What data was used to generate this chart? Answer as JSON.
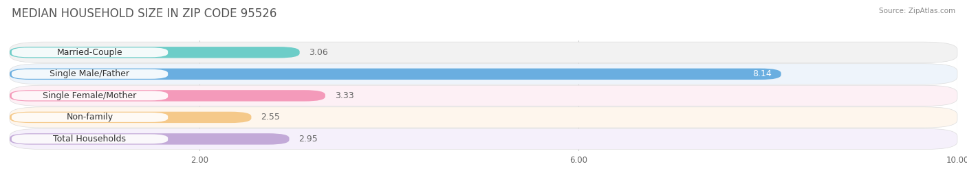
{
  "title": "MEDIAN HOUSEHOLD SIZE IN ZIP CODE 95526",
  "source": "Source: ZipAtlas.com",
  "categories": [
    "Married-Couple",
    "Single Male/Father",
    "Single Female/Mother",
    "Non-family",
    "Total Households"
  ],
  "values": [
    3.06,
    8.14,
    3.33,
    2.55,
    2.95
  ],
  "bar_colors": [
    "#6dcdc8",
    "#6aaee0",
    "#f49aba",
    "#f5c98a",
    "#c3aad8"
  ],
  "row_bg_color": "#ebebeb",
  "row_bg_light": "#f0f0f0",
  "xlim_data": [
    0,
    10
  ],
  "xmin": 0,
  "xmax": 10,
  "xticks": [
    2.0,
    6.0,
    10.0
  ],
  "xtick_labels": [
    "2.00",
    "6.00",
    "10.00"
  ],
  "title_fontsize": 12,
  "label_fontsize": 9,
  "value_fontsize": 9,
  "bar_height": 0.52,
  "background_color": "#ffffff",
  "plot_bg": "#f7f7f7",
  "value_label_color_inside": "#ffffff",
  "value_label_color_outside": "#666666",
  "label_pill_color": "#ffffff",
  "grid_color": "#cccccc",
  "title_color": "#555555",
  "source_color": "#888888"
}
